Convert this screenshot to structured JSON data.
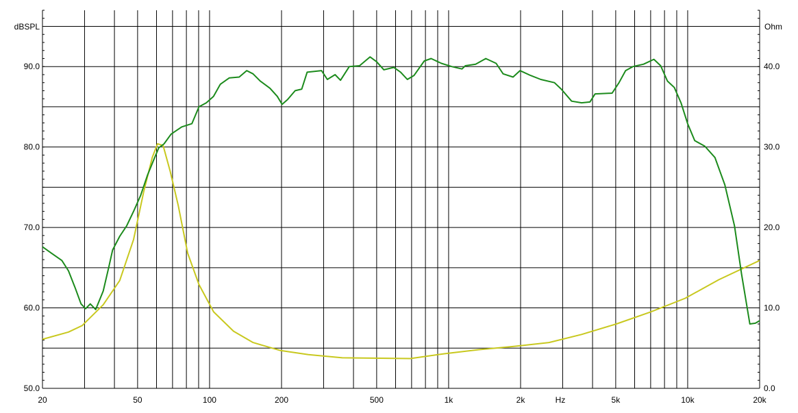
{
  "chart_data": {
    "type": "line",
    "x_scale": "log",
    "xlim": [
      20,
      20000
    ],
    "ylim_left": [
      50,
      97
    ],
    "ylim_right": [
      0,
      47
    ],
    "ylabel_left": "dBSPL",
    "ylabel_right": "Ohm",
    "xlabel": "Hz",
    "grid": true,
    "x_ticks": [
      {
        "value": 20,
        "label": "20"
      },
      {
        "value": 50,
        "label": "50"
      },
      {
        "value": 100,
        "label": "100"
      },
      {
        "value": 200,
        "label": "200"
      },
      {
        "value": 500,
        "label": "500"
      },
      {
        "value": 1000,
        "label": "1k"
      },
      {
        "value": 2000,
        "label": "2k"
      },
      {
        "value": 5000,
        "label": "5k"
      },
      {
        "value": 10000,
        "label": "10k"
      },
      {
        "value": 20000,
        "label": "20k"
      }
    ],
    "y_ticks_left": [
      {
        "value": 50,
        "label": "50.0"
      },
      {
        "value": 60,
        "label": "60.0"
      },
      {
        "value": 70,
        "label": "70.0"
      },
      {
        "value": 80,
        "label": "80.0"
      },
      {
        "value": 90,
        "label": "90.0"
      }
    ],
    "y_ticks_right": [
      {
        "value": 0,
        "label": "0.0"
      },
      {
        "value": 10,
        "label": "10.0"
      },
      {
        "value": 20,
        "label": "20.0"
      },
      {
        "value": 30,
        "label": "30.0"
      },
      {
        "value": 40,
        "label": "40.0"
      }
    ],
    "series": [
      {
        "axis": "left",
        "color": "#1b8a1b",
        "x": [
          20,
          21.8,
          24.1,
          25.7,
          27.4,
          29,
          30.3,
          31.7,
          33.4,
          35.9,
          37.9,
          39.3,
          42.1,
          45,
          48.1,
          51.5,
          55,
          58.6,
          61.3,
          64.5,
          69,
          76.5,
          84.3,
          90.3,
          96.9,
          103.9,
          110.9,
          121,
          133,
          143,
          152,
          163,
          179,
          192,
          201,
          212,
          228,
          243,
          256,
          294,
          311,
          335,
          353,
          384,
          424,
          469,
          500,
          536,
          590,
          630,
          672,
          717,
          791,
          845,
          933,
          1030,
          1137,
          1175,
          1297,
          1430,
          1580,
          1690,
          1860,
          1990,
          2200,
          2430,
          2770,
          2960,
          3270,
          3600,
          3900,
          4100,
          4830,
          5160,
          5500,
          5900,
          6540,
          7220,
          7710,
          8230,
          8790,
          9380,
          10000,
          10700,
          11800,
          13000,
          14300,
          15700,
          16800,
          18200,
          19200,
          20000
        ],
        "y": [
          67.6,
          66.8,
          65.9,
          64.6,
          62.5,
          60.5,
          59.9,
          60.5,
          59.8,
          62.1,
          65.1,
          67.2,
          68.9,
          70.2,
          72.0,
          74.0,
          76.5,
          78.5,
          79.9,
          80.4,
          81.6,
          82.5,
          82.9,
          85.0,
          85.5,
          86.3,
          87.8,
          88.6,
          88.7,
          89.5,
          89.1,
          88.2,
          87.3,
          86.3,
          85.3,
          85.9,
          87.0,
          87.2,
          89.3,
          89.5,
          88.4,
          89.0,
          88.3,
          90.0,
          90.1,
          91.2,
          90.6,
          89.6,
          89.9,
          89.3,
          88.4,
          88.9,
          90.7,
          91.0,
          90.4,
          90.0,
          89.7,
          90.1,
          90.3,
          91.0,
          90.4,
          89.1,
          88.7,
          89.5,
          88.9,
          88.4,
          88.0,
          87.2,
          85.7,
          85.5,
          85.6,
          86.6,
          86.7,
          88.0,
          89.5,
          90.0,
          90.3,
          90.9,
          90.1,
          88.2,
          87.4,
          85.5,
          82.9,
          80.8,
          80.1,
          78.7,
          75.3,
          70.2,
          64.2,
          58.0,
          58.1,
          58.4
        ]
      },
      {
        "axis": "right",
        "color": "#c8c81e",
        "x": [
          20,
          25.7,
          29.3,
          35.9,
          42.1,
          48.1,
          53,
          57.6,
          60.6,
          63.9,
          68.4,
          74,
          81,
          90.3,
          104,
          126,
          152,
          198,
          259,
          359,
          692,
          959,
          1330,
          1860,
          2630,
          3600,
          5030,
          7000,
          9760,
          13500,
          20000
        ],
        "y": [
          6.1,
          7.0,
          7.8,
          10.4,
          13.4,
          18.5,
          24.4,
          28.7,
          30.4,
          30.2,
          27.0,
          22.7,
          16.8,
          12.9,
          9.5,
          7.1,
          5.7,
          4.7,
          4.2,
          3.8,
          3.7,
          4.3,
          4.8,
          5.2,
          5.7,
          6.7,
          8.0,
          9.5,
          11.2,
          13.5,
          15.9
        ]
      }
    ]
  }
}
